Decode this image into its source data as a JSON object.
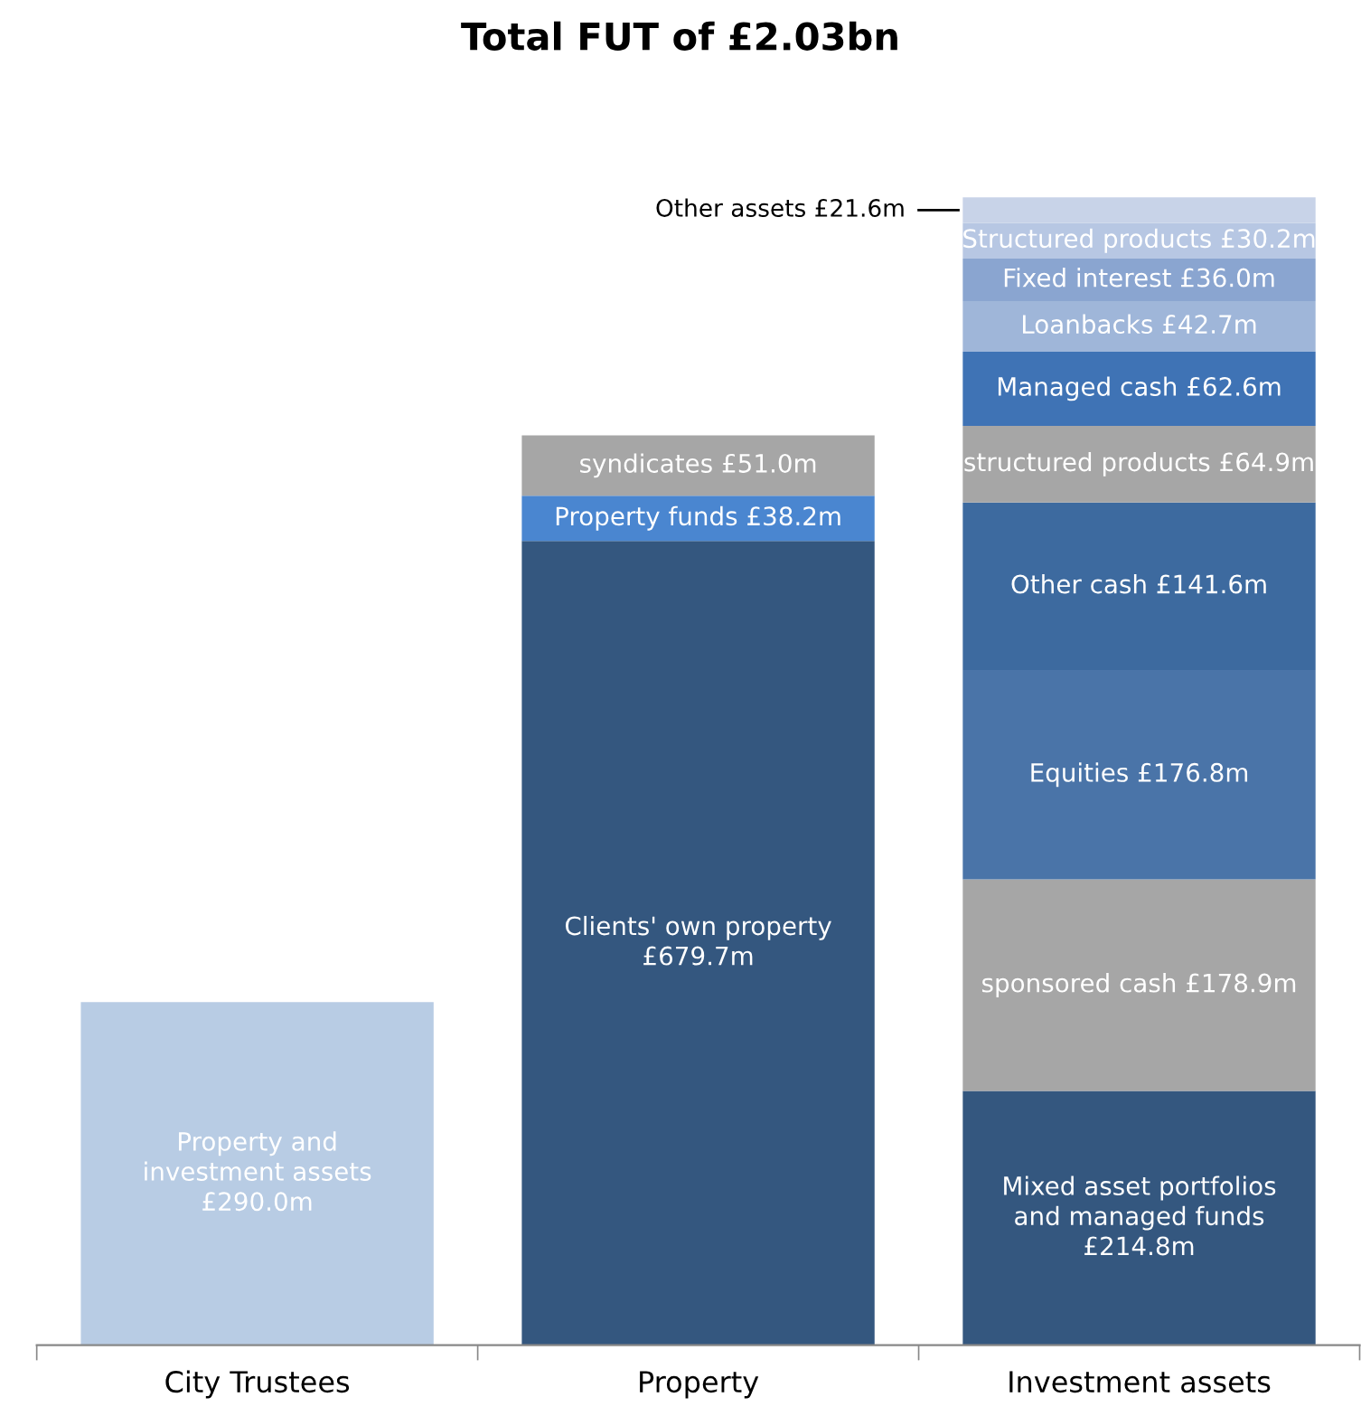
{
  "chart_data": {
    "type": "bar",
    "title": "Total FUT of £2.03bn",
    "stacked": true,
    "legend": false,
    "grid": false,
    "categories": [
      "City Trustees",
      "Property",
      "Investment assets"
    ],
    "series": [
      {
        "color": "#b8cce4",
        "values": [
          290.0,
          null,
          null
        ],
        "value_labels": [
          "£290.0m",
          null,
          null
        ],
        "name": "Property and investment assets"
      },
      {
        "color": "#34577f",
        "values": [
          null,
          679.7,
          null
        ],
        "value_labels": [
          null,
          "£679.7m",
          null
        ],
        "name": "Clients' own property"
      },
      {
        "color": "#4a86d0",
        "values": [
          null,
          38.2,
          null
        ],
        "value_labels": [
          null,
          "£38.2m",
          null
        ],
        "name": "Property funds"
      },
      {
        "color": "#a6a6a6",
        "values": [
          null,
          51.0,
          null
        ],
        "value_labels": [
          null,
          "£51.0m",
          null
        ],
        "name": "syndicates"
      },
      {
        "color": "#34577f",
        "values": [
          null,
          null,
          214.8
        ],
        "value_labels": [
          null,
          null,
          "£214.8m"
        ],
        "name": "Mixed asset portfolios and managed funds"
      },
      {
        "color": "#a6a6a6",
        "values": [
          null,
          null,
          178.9
        ],
        "value_labels": [
          null,
          null,
          "£178.9m"
        ],
        "name": "sponsored cash"
      },
      {
        "color": "#4a74a8",
        "values": [
          null,
          null,
          176.8
        ],
        "value_labels": [
          null,
          null,
          "£176.8m"
        ],
        "name": "Equities"
      },
      {
        "color": "#3d6a9f",
        "values": [
          null,
          null,
          141.6
        ],
        "value_labels": [
          null,
          null,
          "£141.6m"
        ],
        "name": "Other cash"
      },
      {
        "color": "#a6a6a6",
        "values": [
          null,
          null,
          64.9
        ],
        "value_labels": [
          null,
          null,
          "£64.9m"
        ],
        "name": "structured products"
      },
      {
        "color": "#3f73b5",
        "values": [
          null,
          null,
          62.6
        ],
        "value_labels": [
          null,
          null,
          "£62.6m"
        ],
        "name": "Managed cash"
      },
      {
        "color": "#9fb6d9",
        "values": [
          null,
          null,
          42.7
        ],
        "value_labels": [
          null,
          null,
          "£42.7m"
        ],
        "name": "Loanbacks"
      },
      {
        "color": "#8aa5d0",
        "values": [
          null,
          null,
          36.0
        ],
        "value_labels": [
          null,
          null,
          "£36.0m"
        ],
        "name": "Fixed interest"
      },
      {
        "color": "#b7c7e3",
        "values": [
          null,
          null,
          30.2
        ],
        "value_labels": [
          null,
          null,
          "£30.2m"
        ],
        "name": "Structured products"
      },
      {
        "color": "#c8d3e8",
        "values": [
          null,
          null,
          21.6
        ],
        "value_labels": [
          null,
          null,
          "£21.6m"
        ],
        "name": "Other assets"
      }
    ]
  }
}
